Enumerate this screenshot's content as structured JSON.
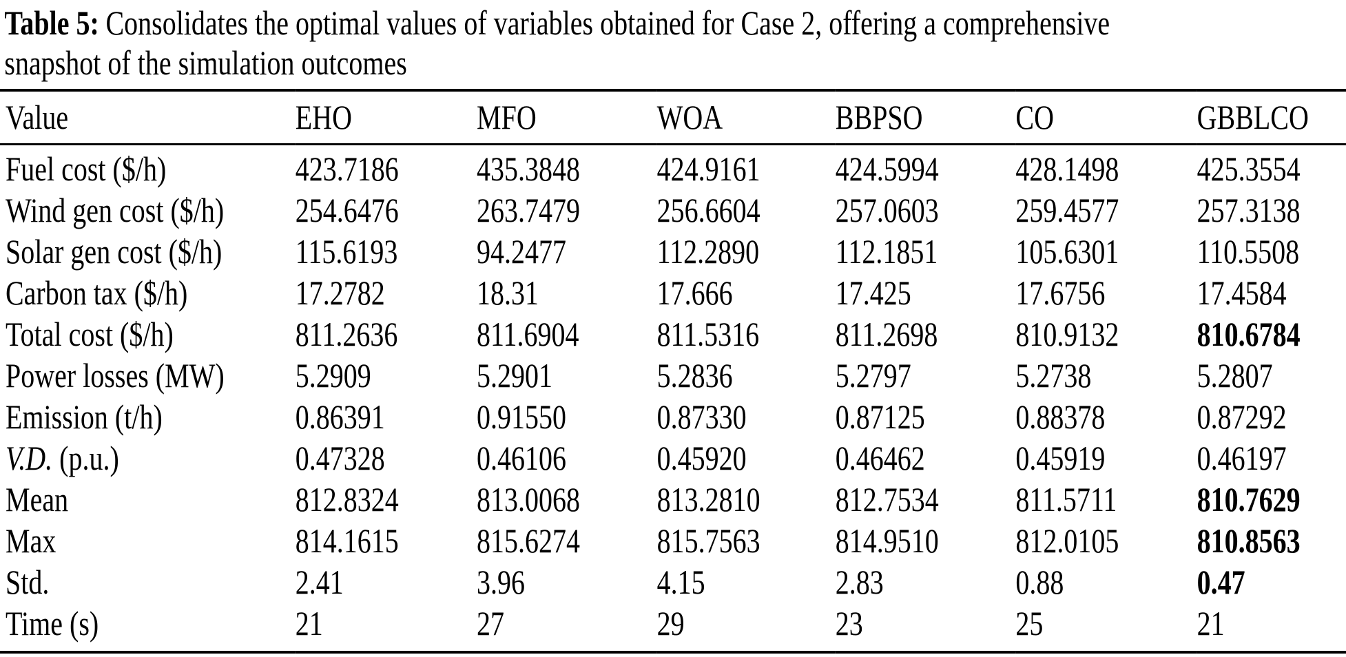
{
  "caption": {
    "label": "Table 5:",
    "line1": "Consolidates the optimal values of variables obtained for Case 2, offering a comprehensive",
    "line2": "snapshot of the simulation outcomes"
  },
  "table": {
    "columns": [
      "Value",
      "EHO",
      "MFO",
      "WOA",
      "BBPSO",
      "CO",
      "GBBLCO"
    ],
    "rows": [
      {
        "label_parts": [
          {
            "text": "Fuel cost ($/h)"
          }
        ],
        "values": [
          "423.7186",
          "435.3848",
          "424.9161",
          "424.5994",
          "428.1498",
          "425.3554"
        ],
        "bold": [
          false,
          false,
          false,
          false,
          false,
          false
        ]
      },
      {
        "label_parts": [
          {
            "text": "Wind gen cost ($/h)"
          }
        ],
        "values": [
          "254.6476",
          "263.7479",
          "256.6604",
          "257.0603",
          "259.4577",
          "257.3138"
        ],
        "bold": [
          false,
          false,
          false,
          false,
          false,
          false
        ]
      },
      {
        "label_parts": [
          {
            "text": "Solar gen cost ($/h)"
          }
        ],
        "values": [
          "115.6193",
          "94.2477",
          "112.2890",
          "112.1851",
          "105.6301",
          "110.5508"
        ],
        "bold": [
          false,
          false,
          false,
          false,
          false,
          false
        ]
      },
      {
        "label_parts": [
          {
            "text": "Carbon tax ($/h)"
          }
        ],
        "values": [
          "17.2782",
          "18.31",
          "17.666",
          "17.425",
          "17.6756",
          "17.4584"
        ],
        "bold": [
          false,
          false,
          false,
          false,
          false,
          false
        ]
      },
      {
        "label_parts": [
          {
            "text": "Total cost ($/h)"
          }
        ],
        "values": [
          "811.2636",
          "811.6904",
          "811.5316",
          "811.2698",
          "810.9132",
          "810.6784"
        ],
        "bold": [
          false,
          false,
          false,
          false,
          false,
          true
        ]
      },
      {
        "label_parts": [
          {
            "text": "Power losses (MW)"
          }
        ],
        "values": [
          "5.2909",
          "5.2901",
          "5.2836",
          "5.2797",
          "5.2738",
          "5.2807"
        ],
        "bold": [
          false,
          false,
          false,
          false,
          false,
          false
        ]
      },
      {
        "label_parts": [
          {
            "text": "Emission (t/h)"
          }
        ],
        "values": [
          "0.86391",
          "0.91550",
          "0.87330",
          "0.87125",
          "0.88378",
          "0.87292"
        ],
        "bold": [
          false,
          false,
          false,
          false,
          false,
          false
        ]
      },
      {
        "label_parts": [
          {
            "text": "V.D.",
            "italic": true
          },
          {
            "text": " (p.u.)"
          }
        ],
        "values": [
          "0.47328",
          "0.46106",
          "0.45920",
          "0.46462",
          "0.45919",
          "0.46197"
        ],
        "bold": [
          false,
          false,
          false,
          false,
          false,
          false
        ]
      },
      {
        "label_parts": [
          {
            "text": "Mean"
          }
        ],
        "values": [
          "812.8324",
          "813.0068",
          "813.2810",
          "812.7534",
          "811.5711",
          "810.7629"
        ],
        "bold": [
          false,
          false,
          false,
          false,
          false,
          true
        ]
      },
      {
        "label_parts": [
          {
            "text": "Max"
          }
        ],
        "values": [
          "814.1615",
          "815.6274",
          "815.7563",
          "814.9510",
          "812.0105",
          "810.8563"
        ],
        "bold": [
          false,
          false,
          false,
          false,
          false,
          true
        ]
      },
      {
        "label_parts": [
          {
            "text": "Std."
          }
        ],
        "values": [
          "2.41",
          "3.96",
          "4.15",
          "2.83",
          "0.88",
          "0.47"
        ],
        "bold": [
          false,
          false,
          false,
          false,
          false,
          true
        ]
      },
      {
        "label_parts": [
          {
            "text": "Time (s)"
          }
        ],
        "values": [
          "21",
          "27",
          "29",
          "23",
          "25",
          "21"
        ],
        "bold": [
          false,
          false,
          false,
          false,
          false,
          false
        ]
      }
    ]
  }
}
